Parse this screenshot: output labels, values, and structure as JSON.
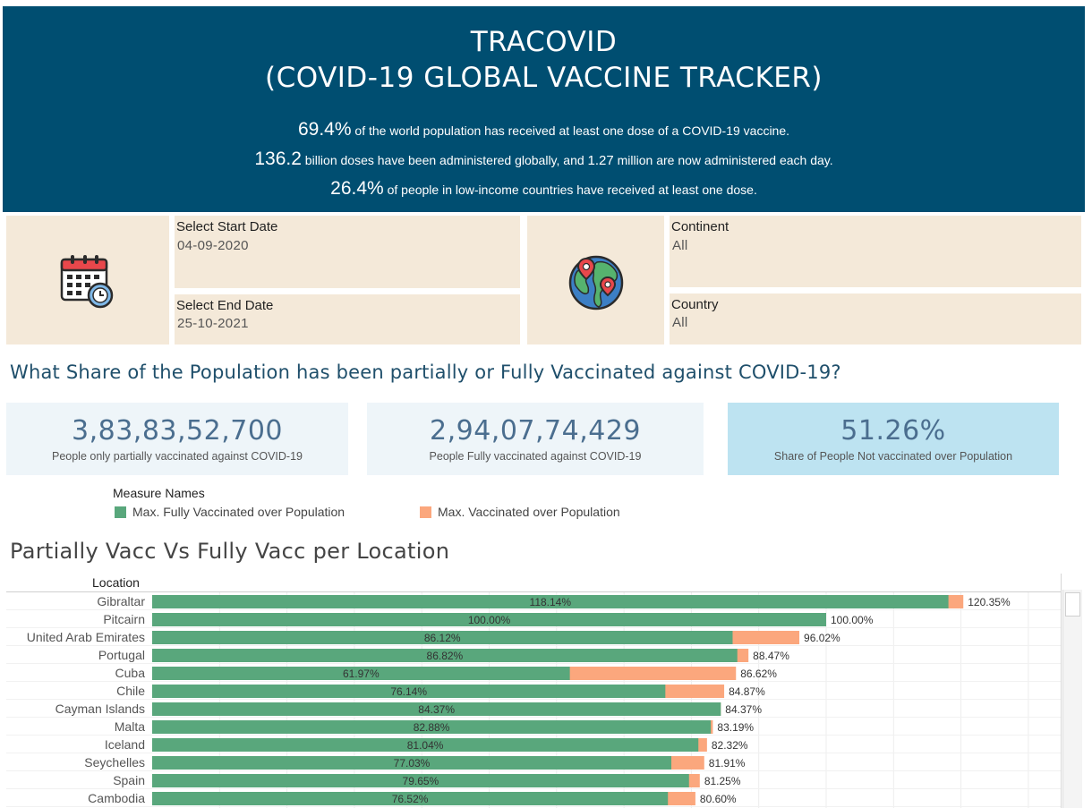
{
  "header": {
    "title_line1": "TRACOVID",
    "title_line2": "(COVID-19 GLOBAL VACCINE TRACKER)",
    "stat1_value": "69.4%",
    "stat1_text": " of the world population has received at least one dose of a COVID-19 vaccine.",
    "stat2_value": "136.2",
    "stat2_text_a": " billion doses have been administered globally, and ",
    "stat2_value_b": "1.27",
    "stat2_text_b": " million are now administered each day.",
    "stat3_value": "26.4%",
    "stat3_text": " of people in low-income countries have received at least one dose."
  },
  "filters": {
    "start_date_label": "Select Start Date",
    "start_date_value": "04-09-2020",
    "end_date_label": "Select End Date",
    "end_date_value": "25-10-2021",
    "continent_label": "Continent",
    "continent_value": "All",
    "country_label": "Country",
    "country_value": "All",
    "calendar_icon": "calendar-clock-icon",
    "globe_icon": "globe-pin-icon"
  },
  "question": "What Share of the Population has been partially or Fully Vaccinated against COVID-19?",
  "kpis": [
    {
      "value": "3,83,83,52,700",
      "caption": "People only partially vaccinated against COVID-19"
    },
    {
      "value": "2,94,07,74,429",
      "caption": "People Fully vaccinated against COVID-19"
    },
    {
      "value": "51.26%",
      "caption": "Share of People  Not vaccinated over Population"
    }
  ],
  "legend": {
    "title": "Measure Names",
    "fully_label": "Max. Fully Vaccinated over Population",
    "vacc_label": "Max. Vaccinated over Population"
  },
  "colors": {
    "header_bg": "#004e71",
    "panel_bg": "#f4e9d9",
    "kpi_bg": "#eef5f9",
    "kpi_highlight_bg": "#bde3f1",
    "fully": "#59a77c",
    "vaccinated": "#fba77d"
  },
  "chart_title": "Partially Vacc Vs Fully Vacc per Location",
  "location_header": "Location",
  "chart_data": {
    "type": "bar",
    "title": "Partially Vacc Vs Fully Vacc per Location",
    "xlabel": "",
    "ylabel": "Location",
    "orientation": "horizontal",
    "categories": [
      "Gibraltar",
      "Pitcairn",
      "United Arab Emirates",
      "Portugal",
      "Cuba",
      "Chile",
      "Cayman Islands",
      "Malta",
      "Iceland",
      "Seychelles",
      "Spain",
      "Cambodia"
    ],
    "series": [
      {
        "name": "Max. Fully Vaccinated over Population",
        "values": [
          118.14,
          100.0,
          86.12,
          86.82,
          61.97,
          76.14,
          84.37,
          82.88,
          81.04,
          77.03,
          79.65,
          76.52
        ]
      },
      {
        "name": "Max. Vaccinated over Population",
        "values": [
          120.35,
          100.0,
          96.02,
          88.47,
          86.62,
          84.87,
          84.37,
          83.19,
          82.32,
          81.91,
          81.25,
          80.6
        ]
      }
    ],
    "labels_fully": [
      "118.14%",
      "100.00%",
      "86.12%",
      "86.82%",
      "61.97%",
      "76.14%",
      "84.37%",
      "82.88%",
      "81.04%",
      "77.03%",
      "79.65%",
      "76.52%"
    ],
    "labels_vacc": [
      "120.35%",
      "100.00%",
      "96.02%",
      "88.47%",
      "86.62%",
      "84.87%",
      "84.37%",
      "83.19%",
      "82.32%",
      "81.91%",
      "81.25%",
      "80.60%"
    ],
    "grid": true
  }
}
